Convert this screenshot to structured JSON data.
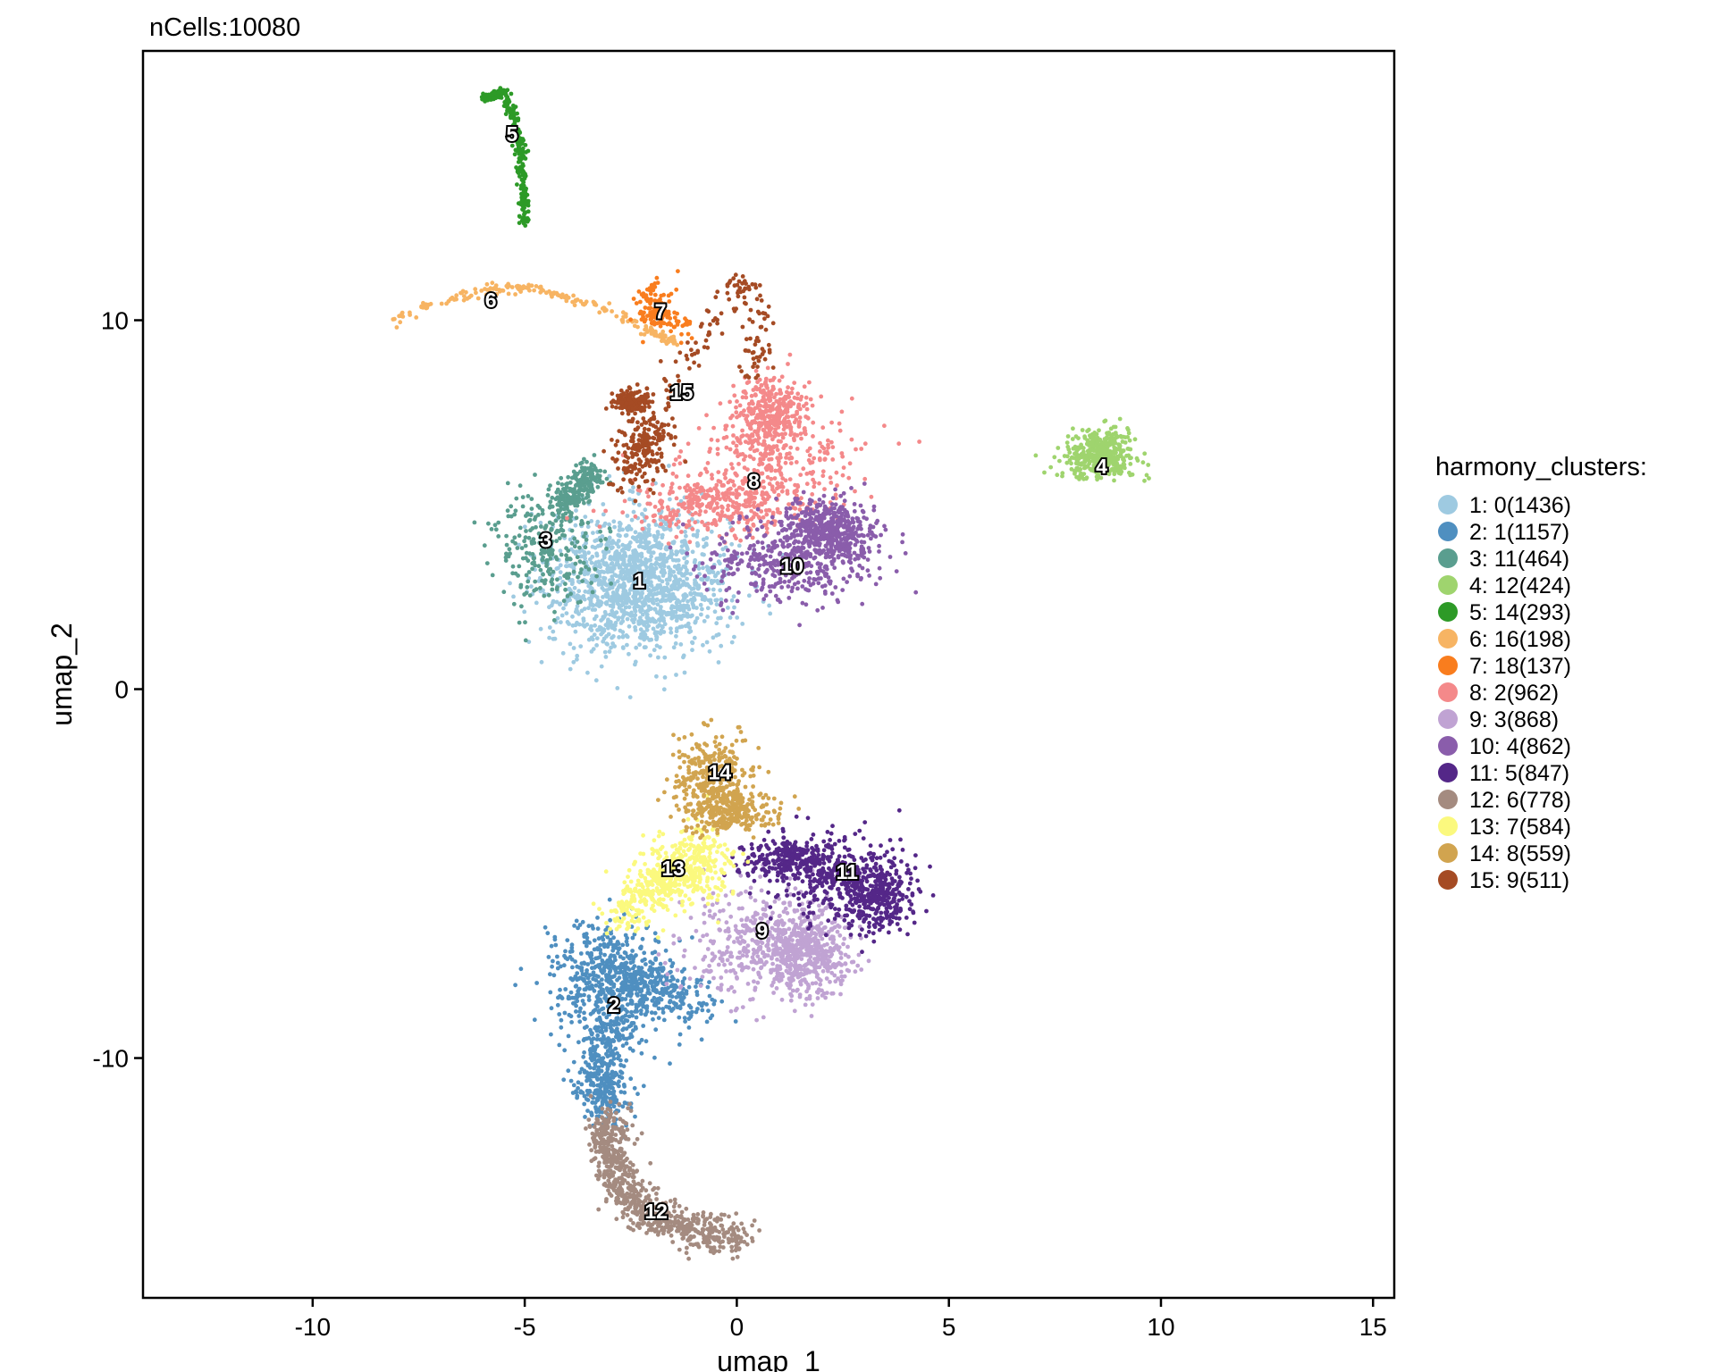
{
  "chart_data": {
    "type": "scatter",
    "title": "nCells:10080",
    "xlabel": "umap_1",
    "ylabel": "umap_2",
    "xlim": [
      -14,
      15.5
    ],
    "ylim": [
      -16.5,
      17.3
    ],
    "xticks": [
      -10,
      -5,
      0,
      5,
      10,
      15
    ],
    "yticks": [
      -10,
      0,
      10
    ],
    "grid": false,
    "legend_title": "harmony_clusters:",
    "legend_position": "right",
    "clusters": [
      {
        "id": "1",
        "legend": "1: 0(1436)",
        "color": "#9ecae1",
        "n": 1436,
        "center": [
          -2.3,
          2.9
        ],
        "label_pos": [
          -2.3,
          2.9
        ]
      },
      {
        "id": "2",
        "legend": "2: 1(1157)",
        "color": "#4f8fc0",
        "n": 1157,
        "center": [
          -3.0,
          -8.5
        ],
        "label_pos": [
          -2.9,
          -8.6
        ]
      },
      {
        "id": "3",
        "legend": "3: 11(464)",
        "color": "#5a9e8f",
        "n": 464,
        "center": [
          -4.5,
          3.9
        ],
        "label_pos": [
          -4.5,
          4.0
        ]
      },
      {
        "id": "4",
        "legend": "4: 12(424)",
        "color": "#9fd46e",
        "n": 424,
        "center": [
          8.5,
          6.1
        ],
        "label_pos": [
          8.6,
          6.0
        ]
      },
      {
        "id": "5",
        "legend": "5: 14(293)",
        "color": "#2d9a27",
        "n": 293,
        "center": [
          -5.2,
          14.0
        ],
        "label_pos": [
          -5.3,
          15.0
        ]
      },
      {
        "id": "6",
        "legend": "6: 16(198)",
        "color": "#f7b463",
        "n": 198,
        "center": [
          -5.5,
          10.6
        ],
        "label_pos": [
          -5.8,
          10.5
        ]
      },
      {
        "id": "7",
        "legend": "7: 18(137)",
        "color": "#f97d1e",
        "n": 137,
        "center": [
          -1.7,
          10.2
        ],
        "label_pos": [
          -1.8,
          10.2
        ]
      },
      {
        "id": "8",
        "legend": "8: 2(962)",
        "color": "#f4898a",
        "n": 962,
        "center": [
          0.6,
          5.8
        ],
        "label_pos": [
          0.4,
          5.6
        ]
      },
      {
        "id": "9",
        "legend": "9: 3(868)",
        "color": "#c0a3d3",
        "n": 868,
        "center": [
          0.7,
          -6.9
        ],
        "label_pos": [
          0.6,
          -6.6
        ]
      },
      {
        "id": "10",
        "legend": "10: 4(862)",
        "color": "#8a5dab",
        "n": 862,
        "center": [
          1.3,
          3.4
        ],
        "label_pos": [
          1.3,
          3.3
        ]
      },
      {
        "id": "11",
        "legend": "11: 5(847)",
        "color": "#542788",
        "n": 847,
        "center": [
          2.4,
          -5.4
        ],
        "label_pos": [
          2.6,
          -5.0
        ]
      },
      {
        "id": "12",
        "legend": "12: 6(778)",
        "color": "#a48b80",
        "n": 778,
        "center": [
          -1.8,
          -14.2
        ],
        "label_pos": [
          -1.9,
          -14.2
        ]
      },
      {
        "id": "13",
        "legend": "13: 7(584)",
        "color": "#fbf97e",
        "n": 584,
        "center": [
          -1.3,
          -4.9
        ],
        "label_pos": [
          -1.5,
          -4.9
        ]
      },
      {
        "id": "14",
        "legend": "14: 8(559)",
        "color": "#d1a44f",
        "n": 559,
        "center": [
          -0.5,
          -2.4
        ],
        "label_pos": [
          -0.4,
          -2.3
        ]
      },
      {
        "id": "15",
        "legend": "15: 9(511)",
        "color": "#a54b24",
        "n": 511,
        "center": [
          -1.5,
          8.0
        ],
        "label_pos": [
          -1.3,
          8.0
        ]
      }
    ]
  }
}
